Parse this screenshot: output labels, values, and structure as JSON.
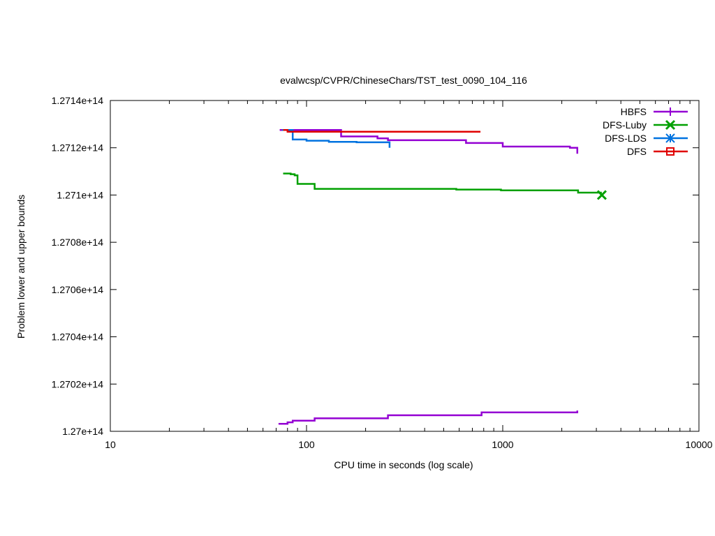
{
  "chart_data": {
    "type": "line",
    "title": "evalwcsp/CVPR/ChineseChars/TST_test_0090_104_116",
    "xlabel": "CPU time in seconds (log scale)",
    "ylabel": "Problem lower and upper bounds",
    "xscale": "log",
    "xlim": [
      10,
      10000
    ],
    "ylim": [
      127000000000000,
      127140000000000
    ],
    "x_ticks": [
      10,
      100,
      1000,
      10000
    ],
    "x_tick_labels": [
      "10",
      "100",
      "1000",
      "10000"
    ],
    "y_ticks": [
      127000000000000,
      127020000000000,
      127040000000000,
      127060000000000,
      127080000000000,
      127100000000000,
      127120000000000,
      127140000000000
    ],
    "y_tick_labels": [
      "1.27e+14",
      "1.2702e+14",
      "1.2704e+14",
      "1.2706e+14",
      "1.2708e+14",
      "1.271e+14",
      "1.2712e+14",
      "1.2714e+14"
    ],
    "grid": false,
    "legend_position": "top-right",
    "series": [
      {
        "name": "HBFS",
        "color": "#9400d3",
        "marker": "plus",
        "lines": [
          [
            [
              73,
              127127500000000
            ],
            [
              150,
              127127500000000
            ],
            [
              150,
              127124800000000
            ],
            [
              230,
              127124800000000
            ],
            [
              230,
              127124000000000
            ],
            [
              260,
              127124000000000
            ],
            [
              260,
              127123200000000
            ],
            [
              650,
              127123200000000
            ],
            [
              650,
              127122000000000
            ],
            [
              1000,
              127122000000000
            ],
            [
              1000,
              127120500000000
            ],
            [
              2200,
              127120500000000
            ],
            [
              2200,
              127120000000000
            ],
            [
              2400,
              127120000000000
            ],
            [
              2400,
              127117500000000
            ]
          ],
          [
            [
              72,
              127003200000000
            ],
            [
              80,
              127003200000000
            ],
            [
              80,
              127003800000000
            ],
            [
              85,
              127003800000000
            ],
            [
              85,
              127004500000000
            ],
            [
              110,
              127004500000000
            ],
            [
              110,
              127005500000000
            ],
            [
              260,
              127005500000000
            ],
            [
              260,
              127006800000000
            ],
            [
              780,
              127006800000000
            ],
            [
              780,
              127008000000000
            ],
            [
              2400,
              127008000000000
            ],
            [
              2400,
              127008800000000
            ]
          ]
        ]
      },
      {
        "name": "DFS-Luby",
        "color": "#00a000",
        "marker": "cross",
        "lines": [
          [
            [
              76,
              127109100000000
            ],
            [
              83,
              127109100000000
            ],
            [
              83,
              127108800000000
            ],
            [
              87,
              127108800000000
            ],
            [
              87,
              127108300000000
            ],
            [
              90,
              127108300000000
            ],
            [
              90,
              127104700000000
            ],
            [
              110,
              127104700000000
            ],
            [
              110,
              127102600000000
            ],
            [
              580,
              127102600000000
            ],
            [
              580,
              127102300000000
            ],
            [
              980,
              127102300000000
            ],
            [
              980,
              127102000000000
            ],
            [
              2420,
              127102000000000
            ],
            [
              2420,
              127101000000000
            ],
            [
              3200,
              127101000000000
            ]
          ]
        ],
        "end_marker": [
          3200,
          127100000000000
        ]
      },
      {
        "name": "DFS-LDS",
        "color": "#0072e0",
        "marker": "star",
        "lines": [
          [
            [
              75,
              127127500000000
            ],
            [
              85,
              127127500000000
            ],
            [
              85,
              127123500000000
            ],
            [
              100,
              127123500000000
            ],
            [
              100,
              127123000000000
            ],
            [
              130,
              127123000000000
            ],
            [
              130,
              127122500000000
            ],
            [
              180,
              127122500000000
            ],
            [
              180,
              127122300000000
            ],
            [
              265,
              127122300000000
            ],
            [
              265,
              127120000000000
            ]
          ]
        ]
      },
      {
        "name": "DFS",
        "color": "#e00000",
        "marker": "square",
        "lines": [
          [
            [
              76,
              127127500000000
            ],
            [
              80,
              127127500000000
            ],
            [
              80,
              127126800000000
            ],
            [
              770,
              127126800000000
            ]
          ]
        ]
      }
    ]
  }
}
